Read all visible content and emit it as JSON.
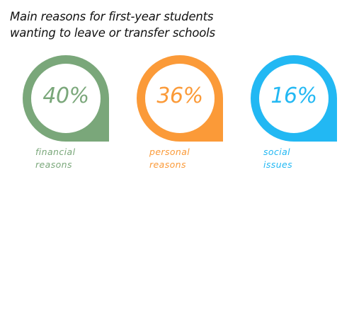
{
  "title": {
    "line1": "Main reasons for first-year students",
    "line2": "wanting to leave or transfer schools"
  },
  "chart_data": {
    "type": "bar",
    "categories": [
      "financial reasons",
      "personal reasons",
      "social issues"
    ],
    "values": [
      40,
      36,
      16
    ],
    "unit": "%",
    "items": [
      {
        "value_text": "40%",
        "label_line1": "financial",
        "label_line2": "reasons",
        "color": "#7aa77a"
      },
      {
        "value_text": "36%",
        "label_line1": "personal",
        "label_line2": "reasons",
        "color": "#fb9a38"
      },
      {
        "value_text": "16%",
        "label_line1": "social",
        "label_line2": "issues",
        "color": "#22b8f3"
      }
    ]
  }
}
